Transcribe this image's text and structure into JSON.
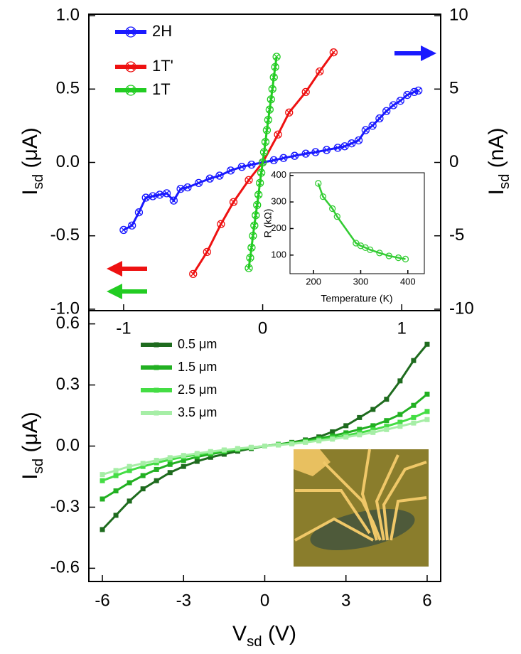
{
  "chart_data": [
    {
      "type": "line",
      "marker": "circle-x",
      "xlim": [
        -1.25,
        1.28
      ],
      "xticks": [
        -1,
        0,
        1
      ],
      "ylim": [
        -1.01,
        1.01
      ],
      "yticks": [
        {
          "value": 1,
          "label": "1.0"
        },
        0.5,
        {
          "value": 0,
          "label": "0.0"
        },
        -0.5,
        {
          "value": -1,
          "label": "-1.0"
        }
      ],
      "y2lim": [
        -10.1,
        10.1
      ],
      "y2ticks": [
        10,
        5,
        0,
        -5,
        -10
      ],
      "ylabel": [
        "I",
        "sd",
        " (μA)"
      ],
      "y2label": [
        "I",
        "sd",
        " (nA)"
      ],
      "series": [
        {
          "name": "2H",
          "color": "#1a1aff",
          "axis": "y2",
          "x": [
            -1.0,
            -0.94,
            -0.89,
            -0.84,
            -0.79,
            -0.74,
            -0.69,
            -0.64,
            -0.59,
            -0.54,
            -0.46,
            -0.38,
            -0.31,
            -0.23,
            -0.15,
            -0.08,
            0,
            0.08,
            0.15,
            0.23,
            0.31,
            0.38,
            0.46,
            0.54,
            0.59,
            0.64,
            0.69,
            0.74,
            0.79,
            0.84,
            0.89,
            0.94,
            0.99,
            1.04,
            1.09,
            1.12
          ],
          "values": [
            -4.6,
            -4.3,
            -3.4,
            -2.4,
            -2.3,
            -2.2,
            -2.1,
            -2.6,
            -1.8,
            -1.7,
            -1.4,
            -1.1,
            -0.9,
            -0.55,
            -0.3,
            -0.15,
            0,
            0.15,
            0.3,
            0.45,
            0.6,
            0.7,
            0.85,
            1.0,
            1.1,
            1.3,
            1.5,
            2.2,
            2.5,
            3.0,
            3.5,
            3.9,
            4.2,
            4.6,
            4.8,
            4.9
          ]
        },
        {
          "name": "1T'",
          "color": "#ee1111",
          "x": [
            -0.5,
            -0.4,
            -0.3,
            -0.21,
            -0.1,
            0,
            0.11,
            0.19,
            0.31,
            0.41,
            0.51
          ],
          "values": [
            -0.76,
            -0.61,
            -0.42,
            -0.27,
            -0.12,
            0,
            0.19,
            0.34,
            0.48,
            0.62,
            0.75
          ]
        },
        {
          "name": "1T",
          "color": "#22cc22",
          "x": [
            -0.1,
            -0.09,
            -0.08,
            -0.07,
            -0.06,
            -0.05,
            -0.04,
            -0.03,
            -0.02,
            -0.01,
            0,
            0.01,
            0.02,
            0.03,
            0.04,
            0.05,
            0.06,
            0.07,
            0.08,
            0.09,
            0.1
          ],
          "values": [
            -0.72,
            -0.65,
            -0.58,
            -0.5,
            -0.43,
            -0.36,
            -0.29,
            -0.22,
            -0.14,
            -0.07,
            0,
            0.07,
            0.14,
            0.22,
            0.29,
            0.36,
            0.43,
            0.5,
            0.58,
            0.65,
            0.72
          ]
        }
      ]
    },
    {
      "type": "line",
      "marker": "square",
      "x": [
        -6,
        -5.5,
        -5,
        -4.5,
        -4,
        -3.5,
        -3,
        -2.5,
        -2,
        -1.5,
        -1,
        -0.5,
        0,
        0.5,
        1,
        1.5,
        2,
        2.5,
        3,
        3.5,
        4,
        4.5,
        5,
        5.5,
        6
      ],
      "xlim": [
        -6.5,
        6.5
      ],
      "xticks": [
        -6,
        -3,
        0,
        3,
        6
      ],
      "ylim": [
        -0.665,
        0.665
      ],
      "yticks": [
        0.6,
        0.3,
        {
          "value": 0,
          "label": "0.0"
        },
        -0.3,
        -0.6
      ],
      "xlabel": [
        "V",
        "sd",
        " (V)"
      ],
      "ylabel": [
        "I",
        "sd",
        " (μA)"
      ],
      "series": [
        {
          "name": "0.5 μm",
          "color": "#1e6b1e",
          "values": [
            -0.41,
            -0.34,
            -0.27,
            -0.21,
            -0.17,
            -0.13,
            -0.1,
            -0.075,
            -0.055,
            -0.04,
            -0.025,
            -0.012,
            0,
            0.008,
            0.018,
            0.03,
            0.045,
            0.07,
            0.1,
            0.14,
            0.18,
            0.23,
            0.32,
            0.42,
            0.5
          ]
        },
        {
          "name": "1.5 μm",
          "color": "#22b022",
          "values": [
            -0.26,
            -0.22,
            -0.18,
            -0.145,
            -0.115,
            -0.09,
            -0.07,
            -0.053,
            -0.04,
            -0.028,
            -0.018,
            -0.009,
            0,
            0.008,
            0.016,
            0.026,
            0.037,
            0.05,
            0.065,
            0.082,
            0.1,
            0.125,
            0.155,
            0.2,
            0.255
          ]
        },
        {
          "name": "2.5 μm",
          "color": "#44dd44",
          "values": [
            -0.17,
            -0.145,
            -0.12,
            -0.1,
            -0.082,
            -0.067,
            -0.053,
            -0.042,
            -0.032,
            -0.022,
            -0.014,
            -0.007,
            0,
            0.006,
            0.013,
            0.021,
            0.03,
            0.04,
            0.052,
            0.065,
            0.08,
            0.097,
            0.117,
            0.14,
            0.17
          ]
        },
        {
          "name": "3.5 μm",
          "color": "#a6eea6",
          "values": [
            -0.14,
            -0.12,
            -0.1,
            -0.085,
            -0.07,
            -0.057,
            -0.046,
            -0.036,
            -0.027,
            -0.019,
            -0.012,
            -0.006,
            0,
            0.005,
            0.011,
            0.018,
            0.026,
            0.034,
            0.044,
            0.055,
            0.067,
            0.081,
            0.097,
            0.113,
            0.13
          ]
        }
      ]
    },
    {
      "type": "line",
      "marker": "circle",
      "color": "#33cc33",
      "x": [
        210,
        220,
        240,
        250,
        290,
        300,
        310,
        320,
        340,
        360,
        380,
        395
      ],
      "values": [
        370,
        320,
        275,
        245,
        145,
        135,
        128,
        120,
        108,
        97,
        90,
        85
      ],
      "xlim": [
        150,
        435
      ],
      "xticks": [
        200,
        300,
        400
      ],
      "ylim": [
        30,
        410
      ],
      "yticks": [
        100,
        200,
        300,
        400
      ],
      "xlabel": "Temperature (K)",
      "ylabel": "R (kΩ)"
    }
  ]
}
